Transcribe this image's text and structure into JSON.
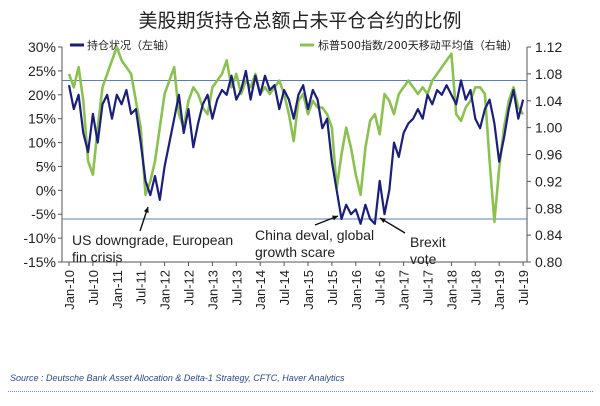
{
  "source": "Source : Deutsche Bank Asset Allocation & Delta-1 Strategy, CFTC, Haver Analytics",
  "colors": {
    "positioning": "#1b1f7a",
    "sp500_ratio": "#8cc152",
    "reference_line": "#5b7fb5"
  },
  "chart_data": {
    "type": "line",
    "title": "美股期货持仓总额占未平仓合约的比例",
    "legend_position": "top",
    "x_ticks": [
      "Jan-10",
      "Jul-10",
      "Jan-11",
      "Jul-11",
      "Jan-12",
      "Jul-12",
      "Jan-13",
      "Jul-13",
      "Jan-14",
      "Jul-14",
      "Jan-15",
      "Jul-15",
      "Jan-16",
      "Jul-16",
      "Jan-17",
      "Jul-17",
      "Jan-18",
      "Jul-18",
      "Jan-19",
      "Jul-19"
    ],
    "left_axis": {
      "ticks": [
        "30%",
        "25%",
        "20%",
        "15%",
        "10%",
        "5%",
        "0%",
        "-5%",
        "-10%",
        "-15%"
      ],
      "tick_values": [
        30,
        25,
        20,
        15,
        10,
        5,
        0,
        -5,
        -10,
        -15
      ],
      "ylim": [
        -15,
        30
      ]
    },
    "right_axis": {
      "ticks": [
        "1.12",
        "1.08",
        "1.04",
        "1.00",
        "0.96",
        "0.92",
        "0.88",
        "0.84",
        "0.80"
      ],
      "tick_values": [
        1.12,
        1.08,
        1.04,
        1.0,
        0.96,
        0.92,
        0.88,
        0.84,
        0.8
      ],
      "ylim": [
        0.8,
        1.12
      ]
    },
    "reference_lines": [
      23,
      -6
    ],
    "series": [
      {
        "name": "持仓状况（左轴）",
        "axis": "left",
        "points": [
          [
            2010.0,
            22
          ],
          [
            2010.1,
            17
          ],
          [
            2010.2,
            20
          ],
          [
            2010.3,
            12
          ],
          [
            2010.4,
            8
          ],
          [
            2010.5,
            16
          ],
          [
            2010.6,
            10
          ],
          [
            2010.7,
            18
          ],
          [
            2010.8,
            20
          ],
          [
            2010.9,
            15
          ],
          [
            2011.0,
            20
          ],
          [
            2011.1,
            18
          ],
          [
            2011.2,
            21
          ],
          [
            2011.3,
            16
          ],
          [
            2011.4,
            17
          ],
          [
            2011.5,
            10
          ],
          [
            2011.6,
            2
          ],
          [
            2011.7,
            -1
          ],
          [
            2011.8,
            3
          ],
          [
            2011.9,
            -2
          ],
          [
            2012.0,
            5
          ],
          [
            2012.1,
            10
          ],
          [
            2012.2,
            15
          ],
          [
            2012.3,
            20
          ],
          [
            2012.4,
            12
          ],
          [
            2012.5,
            17
          ],
          [
            2012.6,
            9
          ],
          [
            2012.7,
            14
          ],
          [
            2012.8,
            18
          ],
          [
            2012.9,
            20
          ],
          [
            2013.0,
            15
          ],
          [
            2013.1,
            19
          ],
          [
            2013.2,
            21
          ],
          [
            2013.3,
            20
          ],
          [
            2013.4,
            24
          ],
          [
            2013.5,
            19
          ],
          [
            2013.6,
            21
          ],
          [
            2013.7,
            25
          ],
          [
            2013.8,
            19
          ],
          [
            2013.9,
            24
          ],
          [
            2014.0,
            20
          ],
          [
            2014.1,
            24
          ],
          [
            2014.2,
            21
          ],
          [
            2014.3,
            22
          ],
          [
            2014.4,
            17
          ],
          [
            2014.5,
            21
          ],
          [
            2014.6,
            19
          ],
          [
            2014.7,
            15
          ],
          [
            2014.8,
            20
          ],
          [
            2014.9,
            22
          ],
          [
            2015.0,
            17
          ],
          [
            2015.1,
            21
          ],
          [
            2015.2,
            19
          ],
          [
            2015.3,
            13
          ],
          [
            2015.4,
            15
          ],
          [
            2015.5,
            6
          ],
          [
            2015.6,
            0
          ],
          [
            2015.7,
            -6
          ],
          [
            2015.8,
            -3
          ],
          [
            2015.9,
            -5
          ],
          [
            2016.0,
            -4
          ],
          [
            2016.1,
            -7
          ],
          [
            2016.2,
            -3
          ],
          [
            2016.3,
            -6
          ],
          [
            2016.4,
            -7
          ],
          [
            2016.5,
            2
          ],
          [
            2016.6,
            -5
          ],
          [
            2016.7,
            0
          ],
          [
            2016.8,
            10
          ],
          [
            2016.9,
            7
          ],
          [
            2017.0,
            12
          ],
          [
            2017.1,
            14
          ],
          [
            2017.2,
            15
          ],
          [
            2017.3,
            17
          ],
          [
            2017.4,
            15
          ],
          [
            2017.5,
            20
          ],
          [
            2017.6,
            18
          ],
          [
            2017.7,
            21
          ],
          [
            2017.8,
            20
          ],
          [
            2017.9,
            22
          ],
          [
            2018.0,
            20
          ],
          [
            2018.1,
            18
          ],
          [
            2018.2,
            23
          ],
          [
            2018.3,
            19
          ],
          [
            2018.4,
            21
          ],
          [
            2018.5,
            15
          ],
          [
            2018.6,
            13
          ],
          [
            2018.7,
            17
          ],
          [
            2018.8,
            19
          ],
          [
            2018.9,
            14
          ],
          [
            2019.0,
            6
          ],
          [
            2019.1,
            11
          ],
          [
            2019.2,
            17
          ],
          [
            2019.3,
            21
          ],
          [
            2019.4,
            15
          ],
          [
            2019.5,
            19
          ]
        ]
      },
      {
        "name": "标普500指数/200天移动平均值（右轴）",
        "axis": "right",
        "points": [
          [
            2010.0,
            1.08
          ],
          [
            2010.1,
            1.06
          ],
          [
            2010.2,
            1.09
          ],
          [
            2010.3,
            1.04
          ],
          [
            2010.4,
            0.95
          ],
          [
            2010.5,
            0.93
          ],
          [
            2010.6,
            1.0
          ],
          [
            2010.7,
            1.06
          ],
          [
            2010.8,
            1.08
          ],
          [
            2010.9,
            1.1
          ],
          [
            2011.0,
            1.12
          ],
          [
            2011.1,
            1.1
          ],
          [
            2011.2,
            1.09
          ],
          [
            2011.3,
            1.08
          ],
          [
            2011.4,
            1.04
          ],
          [
            2011.5,
            1.0
          ],
          [
            2011.6,
            0.9
          ],
          [
            2011.7,
            0.92
          ],
          [
            2011.8,
            0.95
          ],
          [
            2011.9,
            1.0
          ],
          [
            2012.0,
            1.05
          ],
          [
            2012.1,
            1.07
          ],
          [
            2012.2,
            1.09
          ],
          [
            2012.3,
            1.02
          ],
          [
            2012.4,
            1.0
          ],
          [
            2012.5,
            1.04
          ],
          [
            2012.6,
            1.06
          ],
          [
            2012.7,
            1.05
          ],
          [
            2012.8,
            1.03
          ],
          [
            2012.9,
            1.02
          ],
          [
            2013.0,
            1.06
          ],
          [
            2013.1,
            1.07
          ],
          [
            2013.2,
            1.08
          ],
          [
            2013.3,
            1.1
          ],
          [
            2013.4,
            1.06
          ],
          [
            2013.5,
            1.08
          ],
          [
            2013.6,
            1.05
          ],
          [
            2013.7,
            1.07
          ],
          [
            2013.8,
            1.06
          ],
          [
            2013.9,
            1.08
          ],
          [
            2014.0,
            1.05
          ],
          [
            2014.1,
            1.06
          ],
          [
            2014.2,
            1.05
          ],
          [
            2014.3,
            1.06
          ],
          [
            2014.4,
            1.07
          ],
          [
            2014.5,
            1.05
          ],
          [
            2014.6,
            1.02
          ],
          [
            2014.7,
            0.98
          ],
          [
            2014.8,
            1.04
          ],
          [
            2014.9,
            1.05
          ],
          [
            2015.0,
            1.02
          ],
          [
            2015.1,
            1.04
          ],
          [
            2015.2,
            1.03
          ],
          [
            2015.3,
            1.03
          ],
          [
            2015.4,
            1.02
          ],
          [
            2015.5,
            1.0
          ],
          [
            2015.6,
            0.91
          ],
          [
            2015.7,
            0.96
          ],
          [
            2015.8,
            1.0
          ],
          [
            2015.9,
            0.97
          ],
          [
            2016.0,
            0.93
          ],
          [
            2016.1,
            0.9
          ],
          [
            2016.2,
            0.97
          ],
          [
            2016.3,
            1.01
          ],
          [
            2016.4,
            1.02
          ],
          [
            2016.5,
            0.99
          ],
          [
            2016.6,
            1.05
          ],
          [
            2016.7,
            1.04
          ],
          [
            2016.8,
            1.02
          ],
          [
            2016.9,
            1.05
          ],
          [
            2017.0,
            1.06
          ],
          [
            2017.1,
            1.07
          ],
          [
            2017.2,
            1.06
          ],
          [
            2017.3,
            1.05
          ],
          [
            2017.4,
            1.06
          ],
          [
            2017.5,
            1.05
          ],
          [
            2017.6,
            1.07
          ],
          [
            2017.7,
            1.08
          ],
          [
            2017.8,
            1.09
          ],
          [
            2017.9,
            1.1
          ],
          [
            2018.0,
            1.11
          ],
          [
            2018.1,
            1.02
          ],
          [
            2018.2,
            1.01
          ],
          [
            2018.3,
            1.03
          ],
          [
            2018.4,
            1.04
          ],
          [
            2018.5,
            1.06
          ],
          [
            2018.6,
            1.06
          ],
          [
            2018.7,
            1.05
          ],
          [
            2018.8,
            0.95
          ],
          [
            2018.9,
            0.86
          ],
          [
            2019.0,
            0.94
          ],
          [
            2019.1,
            1.0
          ],
          [
            2019.2,
            1.04
          ],
          [
            2019.3,
            1.06
          ],
          [
            2019.4,
            1.03
          ],
          [
            2019.5,
            1.02
          ]
        ]
      }
    ],
    "annotations": [
      {
        "id": "us-downgrade",
        "lines": [
          "US downgrade, European",
          "fin crisis"
        ]
      },
      {
        "id": "china-deval",
        "lines": [
          "China deval, global",
          "growth scare"
        ]
      },
      {
        "id": "brexit",
        "lines": [
          "Brexit",
          "vote"
        ]
      }
    ]
  }
}
